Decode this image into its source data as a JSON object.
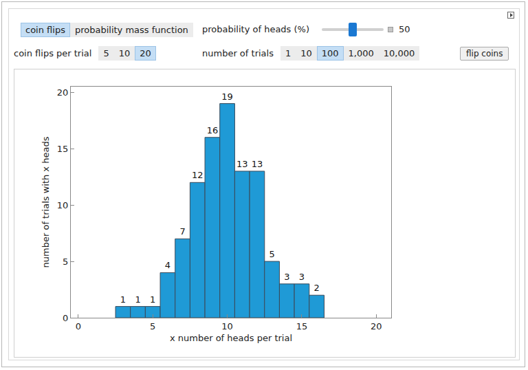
{
  "controls": {
    "tabs": [
      {
        "label": "coin flips",
        "selected": true
      },
      {
        "label": "probability mass function",
        "selected": false
      }
    ],
    "slider": {
      "label": "probability of heads (%)",
      "value": 50
    },
    "flips_per_trial": {
      "label": "coin flips per trial",
      "options": [
        "5",
        "10",
        "20"
      ],
      "selected": "20"
    },
    "trials": {
      "label": "number of trials",
      "options": [
        "1",
        "10",
        "100",
        "1,000",
        "10,000"
      ],
      "selected": "100"
    },
    "button": "flip coins"
  },
  "chart_data": {
    "type": "histogram",
    "x_label": "x number of heads per trial",
    "y_label": "number of trials with x heads",
    "bins": [
      2.5,
      3.5,
      4.5,
      5.5,
      6.5,
      7.5,
      8.5,
      9.5,
      10.5,
      11.5,
      12.5,
      13.5,
      14.5,
      15.5,
      16.5
    ],
    "values": [
      1,
      1,
      1,
      4,
      7,
      12,
      16,
      19,
      13,
      13,
      5,
      3,
      3,
      2
    ],
    "color": "#1f9ad6",
    "xlim": [
      -0.5,
      21
    ],
    "xticks": [
      0,
      5,
      10,
      15,
      20
    ],
    "ylim": [
      0,
      20.5
    ],
    "yticks": [
      0,
      5,
      10,
      15,
      20
    ],
    "grid": false,
    "data_labels": true
  }
}
